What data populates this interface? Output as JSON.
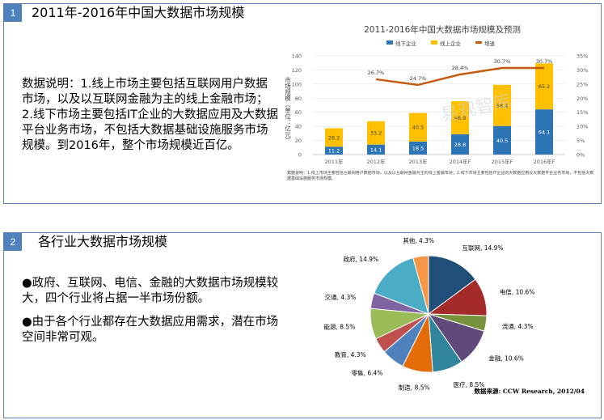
{
  "panel1": {
    "number": "1",
    "title": "2011年-2016年中国大数据市场规模",
    "description": "数据说明：1.线上市场主要包括互联网用户数据市场，以及以互联网金融为主的线上金融市场；2.线下市场主要包括IT企业的大数据应用及大数据平台业务市场，不包括大数据基础设施服务市场规模。到2016年，整个市场规模近百亿。"
  },
  "panel2": {
    "number": "2",
    "title": "各行业大数据市场规模",
    "bullet1": "●政府、互联网、电信、金融的大数据市场规模较大，四个行业将占据一半市场份额。",
    "bullet2": "●由于各个行业都存在大数据应用需求，潜在市场空间非常可观。"
  },
  "watermark": "易观智库",
  "chart_data": [
    {
      "type": "bar",
      "stacked": true,
      "title": "2011-2016年中国大数据市场规模及预测",
      "ylabel": "市场规模（单位：亿元）",
      "categories": [
        "2011年",
        "2012年",
        "2013年",
        "2014年F",
        "2015年F",
        "2016年F"
      ],
      "ylim": [
        0,
        140
      ],
      "yticks": [
        "0",
        "20",
        "40",
        "60",
        "80",
        "100",
        "120",
        "140"
      ],
      "y2lim": [
        0,
        35
      ],
      "y2ticks": [
        "0%",
        "5%",
        "10%",
        "15%",
        "20%",
        "25%",
        "30%",
        "35%"
      ],
      "series": [
        {
          "name": "线下企业",
          "values": [
            11.2,
            14.1,
            18.5,
            28.8,
            40.5,
            64.1
          ],
          "color": "#2e75b6"
        },
        {
          "name": "线上企业",
          "values": [
            26.2,
            33.2,
            40.5,
            46.9,
            58.4,
            65.2
          ],
          "color": "#ffc000"
        },
        {
          "name": "增速",
          "values": [
            null,
            26.7,
            24.7,
            28.4,
            30.7,
            30.7
          ],
          "value_labels": [
            "",
            "26.7%",
            "24.7%",
            "28.4%",
            "30.7%",
            "30.7%"
          ],
          "color": "#c55a11",
          "axis": "right",
          "type": "line"
        }
      ],
      "legend": "top",
      "footnote": "数据说明：1.线上市场主要包括互联网用户数据市场，以及以互联网金融为主的线上金融市场；2.线下市场主要包括IT企业的大数据应用及大数据平台业务市场，不包括大数据基础设施服务市场规模。"
    },
    {
      "type": "pie",
      "slices": [
        {
          "label": "互联网, 14.9%",
          "value": 14.9,
          "color": "#1f4e79"
        },
        {
          "label": "电信, 10.6%",
          "value": 10.6,
          "color": "#a52a2a"
        },
        {
          "label": "流通, 4.3%",
          "value": 4.3,
          "color": "#76923c"
        },
        {
          "label": "金融, 10.6%",
          "value": 10.6,
          "color": "#604a7b"
        },
        {
          "label": "医疗, 8.5%",
          "value": 8.5,
          "color": "#31859c"
        },
        {
          "label": "制造, 8.5%",
          "value": 8.5,
          "color": "#e36c09"
        },
        {
          "label": "零售, 6.4%",
          "value": 6.4,
          "color": "#4f81bd"
        },
        {
          "label": "教育, 4.3%",
          "value": 4.3,
          "color": "#c0504d"
        },
        {
          "label": "能源, 8.5%",
          "value": 8.5,
          "color": "#9bbb59"
        },
        {
          "label": "交通, 4.3%",
          "value": 4.3,
          "color": "#8064a2"
        },
        {
          "label": "政府, 14.9%",
          "value": 14.9,
          "color": "#4bacc6"
        },
        {
          "label": "其他, 4.3%",
          "value": 4.3,
          "color": "#f79646"
        }
      ],
      "source": "数据来源: CCW Research, 2012/04"
    }
  ]
}
